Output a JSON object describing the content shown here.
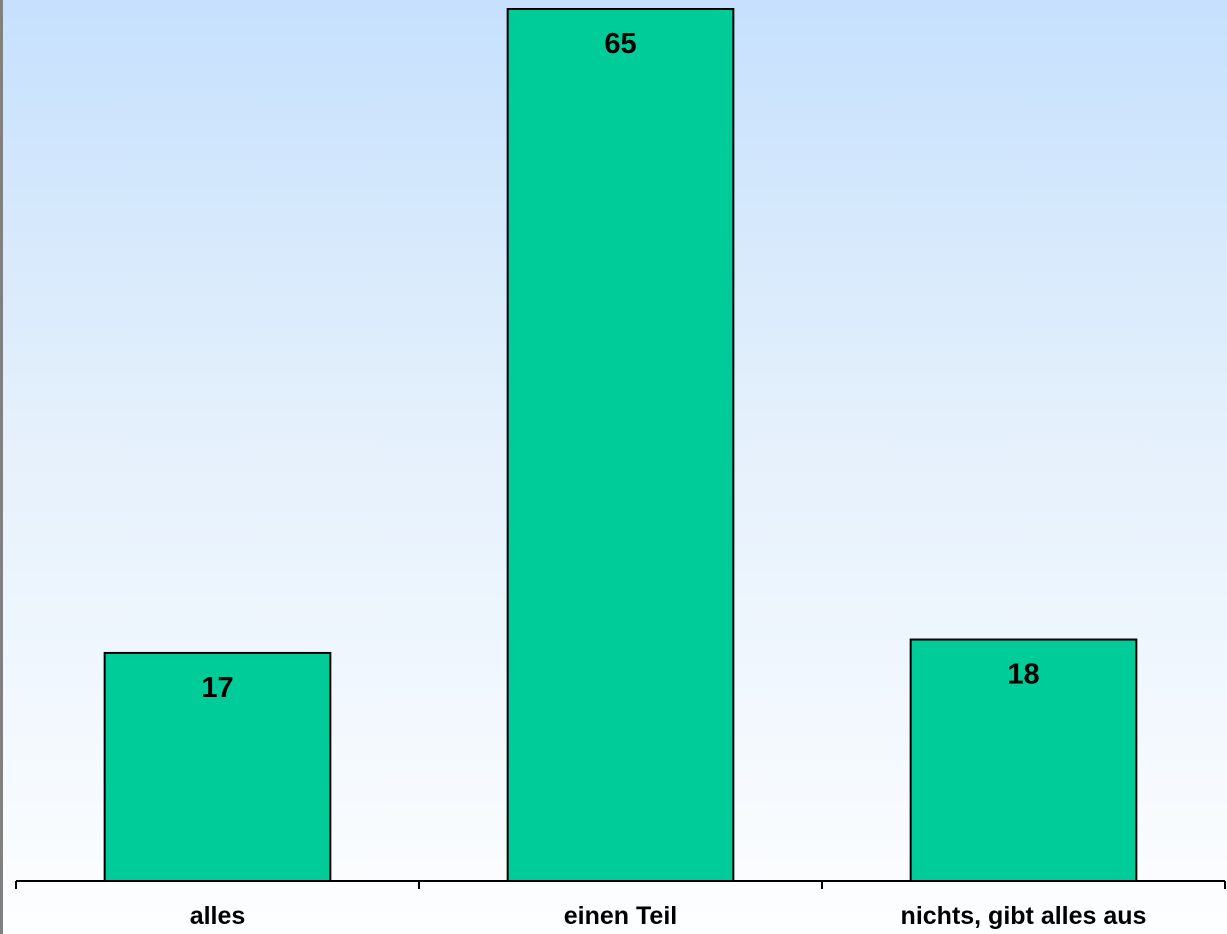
{
  "chart_data": {
    "type": "bar",
    "categories": [
      "alles",
      "einen Teil",
      "nichts, gibt alles aus"
    ],
    "values": [
      17,
      65,
      18
    ],
    "data_labels": [
      "17",
      "65",
      "18"
    ],
    "title": "",
    "xlabel": "",
    "ylabel": "",
    "ylim": [
      0,
      65
    ],
    "grid": false,
    "legend": "none",
    "bar_color": "#00cc99",
    "bar_stroke": "#000000"
  }
}
